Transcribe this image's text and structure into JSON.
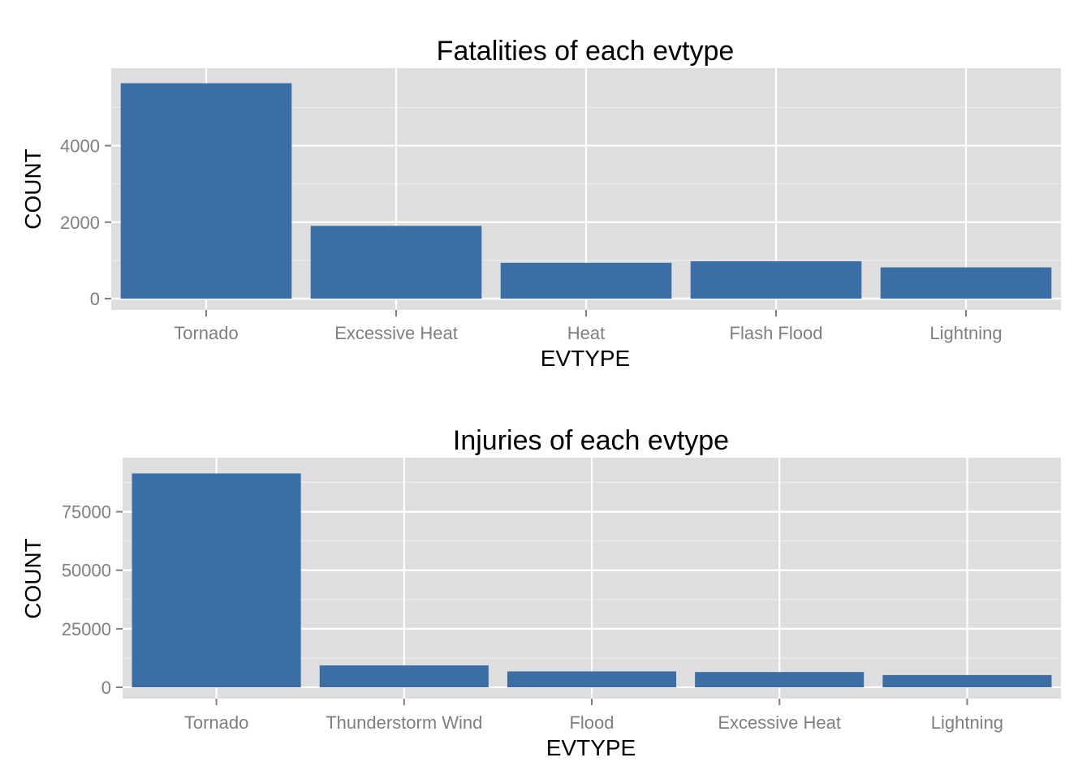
{
  "chart_data": [
    {
      "type": "bar",
      "title": "Fatalities of each evtype",
      "xlabel": "EVTYPE",
      "ylabel": "COUNT",
      "categories": [
        "Tornado",
        "Excessive Heat",
        "Heat",
        "Flash Flood",
        "Lightning"
      ],
      "values": [
        5633,
        1903,
        937,
        978,
        816
      ],
      "ylim": [
        0,
        5900
      ],
      "yticks": [
        0,
        2000,
        4000
      ],
      "yticklabels": [
        "0",
        "2000",
        "4000"
      ],
      "grid": true,
      "bar_color": "#3A6EA5",
      "panel_background": "#DEDEDE",
      "grid_color": "#FFFFFF"
    },
    {
      "type": "bar",
      "title": "Injuries of each evtype",
      "xlabel": "EVTYPE",
      "ylabel": "COUNT",
      "categories": [
        "Tornado",
        "Thunderstorm Wind",
        "Flood",
        "Excessive Heat",
        "Lightning"
      ],
      "values": [
        91346,
        9353,
        6791,
        6525,
        5230
      ],
      "ylim": [
        0,
        96000
      ],
      "yticks": [
        0,
        25000,
        50000,
        75000
      ],
      "yticklabels": [
        "0",
        "25000",
        "50000",
        "75000"
      ],
      "grid": true,
      "bar_color": "#3A6EA5",
      "panel_background": "#DEDEDE",
      "grid_color": "#FFFFFF"
    }
  ]
}
